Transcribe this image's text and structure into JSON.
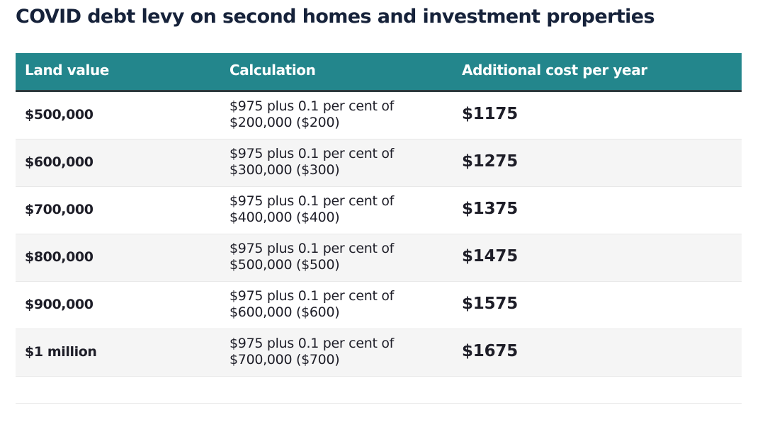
{
  "title": "COVID debt levy on second homes and investment properties",
  "table": {
    "headers": [
      "Land value",
      "Calculation",
      "Additional cost per year"
    ],
    "rows": [
      {
        "land_value": "$500,000",
        "calc_line1": "$975 plus 0.1 per cent of",
        "calc_line2": "$200,000 ($200)",
        "cost": "$1175"
      },
      {
        "land_value": "$600,000",
        "calc_line1": "$975 plus 0.1 per cent of",
        "calc_line2": "$300,000 ($300)",
        "cost": "$1275"
      },
      {
        "land_value": "$700,000",
        "calc_line1": "$975 plus 0.1 per cent of",
        "calc_line2": "$400,000 ($400)",
        "cost": "$1375"
      },
      {
        "land_value": "$800,000",
        "calc_line1": "$975 plus 0.1 per cent of",
        "calc_line2": "$500,000 ($500)",
        "cost": "$1475"
      },
      {
        "land_value": "$900,000",
        "calc_line1": "$975 plus 0.1 per cent of",
        "calc_line2": "$600,000 ($600)",
        "cost": "$1575"
      },
      {
        "land_value": "$1 million",
        "calc_line1": "$975 plus 0.1 per cent of",
        "calc_line2": "$700,000 ($700)",
        "cost": "$1675"
      }
    ]
  },
  "colors": {
    "header_bg": "#23868c",
    "header_text": "#ffffff",
    "title_text": "#16223a",
    "alt_row_bg": "#f5f5f5"
  }
}
